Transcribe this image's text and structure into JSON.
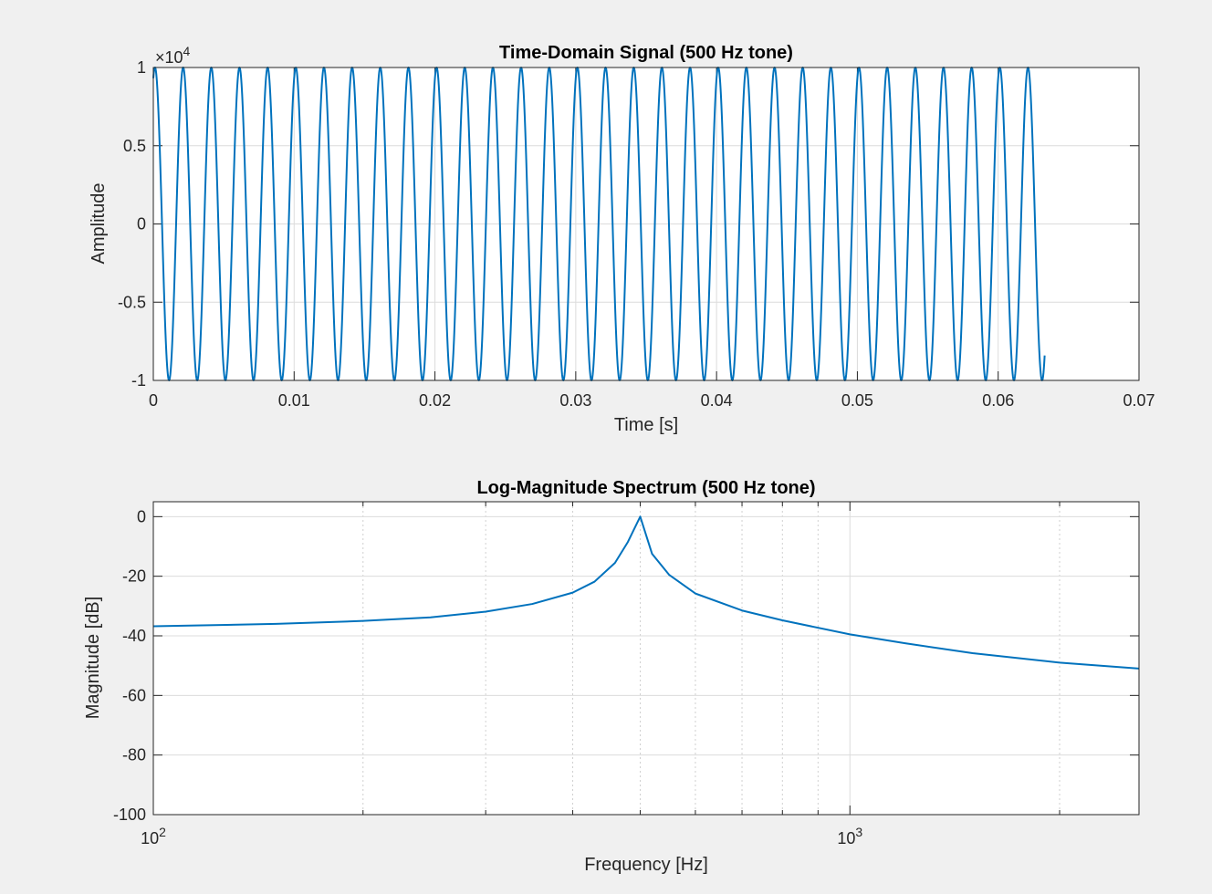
{
  "chart_data": [
    {
      "type": "line",
      "title": "Time-Domain Signal (500 Hz tone)",
      "xlabel": "Time [s]",
      "ylabel": "Amplitude",
      "xlim": [
        0,
        0.07
      ],
      "ylim": [
        -1,
        1
      ],
      "y_exponent_label": "×10",
      "y_exponent_power": "4",
      "x_ticks": [
        0,
        0.01,
        0.02,
        0.03,
        0.04,
        0.05,
        0.06,
        0.07
      ],
      "x_tick_labels": [
        "0",
        "0.01",
        "0.02",
        "0.03",
        "0.04",
        "0.05",
        "0.06",
        "0.07"
      ],
      "y_ticks": [
        -1,
        -0.5,
        0,
        0.5,
        1
      ],
      "y_tick_labels": [
        "-1",
        "-0.5",
        "0",
        "0.5",
        "1"
      ],
      "grid": true,
      "series": [
        {
          "color": "#0072BD",
          "description": "sine wave, amplitude 1e4 (axis shown in units of 1e4), frequency 500 Hz, phase ~1.2 rad, from t=0 to t=0.0633 s",
          "amplitude": 1,
          "frequency_hz": 500,
          "phase_rad": 1.2,
          "t_start": 0,
          "t_end": 0.0633
        }
      ]
    },
    {
      "type": "line",
      "title": "Log-Magnitude Spectrum (500 Hz tone)",
      "xlabel": "Frequency [Hz]",
      "ylabel": "Magnitude [dB]",
      "xscale": "log",
      "xlim": [
        100,
        2600
      ],
      "ylim": [
        -100,
        5
      ],
      "x_tick_labels": [
        {
          "base": "10",
          "power": "2"
        },
        {
          "base": "10",
          "power": "3"
        }
      ],
      "x_major_ticks": [
        100,
        1000
      ],
      "x_minor_ticks": [
        200,
        300,
        400,
        500,
        600,
        700,
        800,
        900,
        2000
      ],
      "y_ticks": [
        -100,
        -80,
        -60,
        -40,
        -20,
        0
      ],
      "y_tick_labels": [
        "-100",
        "-80",
        "-60",
        "-40",
        "-20",
        "0"
      ],
      "grid": true,
      "series": [
        {
          "color": "#0072BD",
          "x": [
            100,
            150,
            200,
            250,
            300,
            350,
            400,
            430,
            460,
            480,
            500,
            520,
            550,
            600,
            700,
            800,
            1000,
            1200,
            1500,
            2000,
            2600
          ],
          "y": [
            -36.8,
            -36.0,
            -35.0,
            -33.8,
            -31.9,
            -29.3,
            -25.5,
            -21.8,
            -15.5,
            -8.5,
            0,
            -12.5,
            -19.5,
            -25.8,
            -31.5,
            -34.8,
            -39.5,
            -42.5,
            -45.8,
            -49.0,
            -51.0
          ]
        }
      ]
    }
  ]
}
